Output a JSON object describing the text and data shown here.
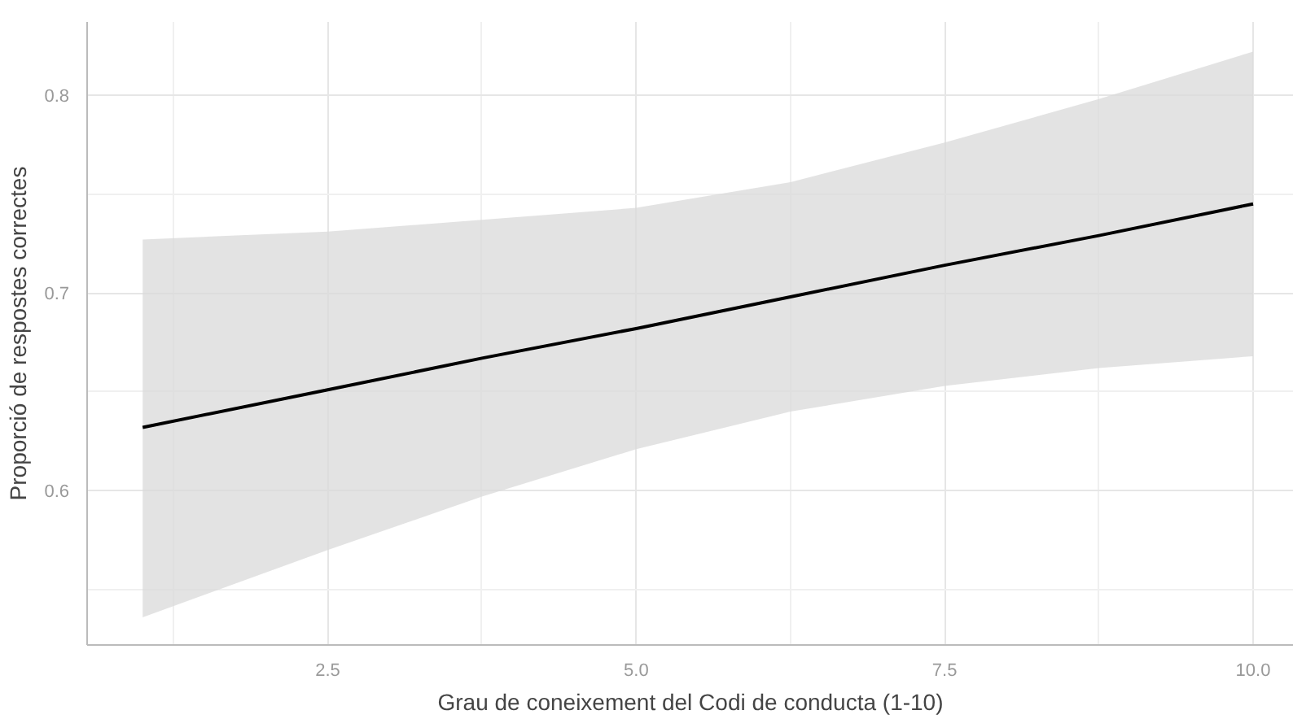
{
  "chart_data": {
    "type": "line",
    "xlabel": "Grau de coneixement del Codi de conducta (1-10)",
    "ylabel": "Proporció de respostes correctes",
    "x": [
      1,
      2.5,
      3.75,
      5,
      6.25,
      7.5,
      8.75,
      10
    ],
    "series": [
      {
        "color": "#000000",
        "values": [
          0.632,
          0.651,
          0.667,
          0.682,
          0.698,
          0.714,
          0.729,
          0.745
        ],
        "lower": [
          0.536,
          0.57,
          0.597,
          0.621,
          0.64,
          0.653,
          0.662,
          0.668
        ],
        "upper": [
          0.727,
          0.731,
          0.737,
          0.743,
          0.756,
          0.776,
          0.798,
          0.822
        ]
      }
    ],
    "xlim": [
      0.55,
      10.33
    ],
    "xticks": [
      2.5,
      {
        "value": 5,
        "label": "5.0"
      },
      7.5,
      {
        "value": 10,
        "label": "10.0"
      }
    ],
    "ylim": [
      0.522,
      0.837
    ],
    "yticks": [
      0.6,
      0.7,
      0.8
    ],
    "grid": true,
    "marker": "none",
    "line_style": "solid"
  }
}
